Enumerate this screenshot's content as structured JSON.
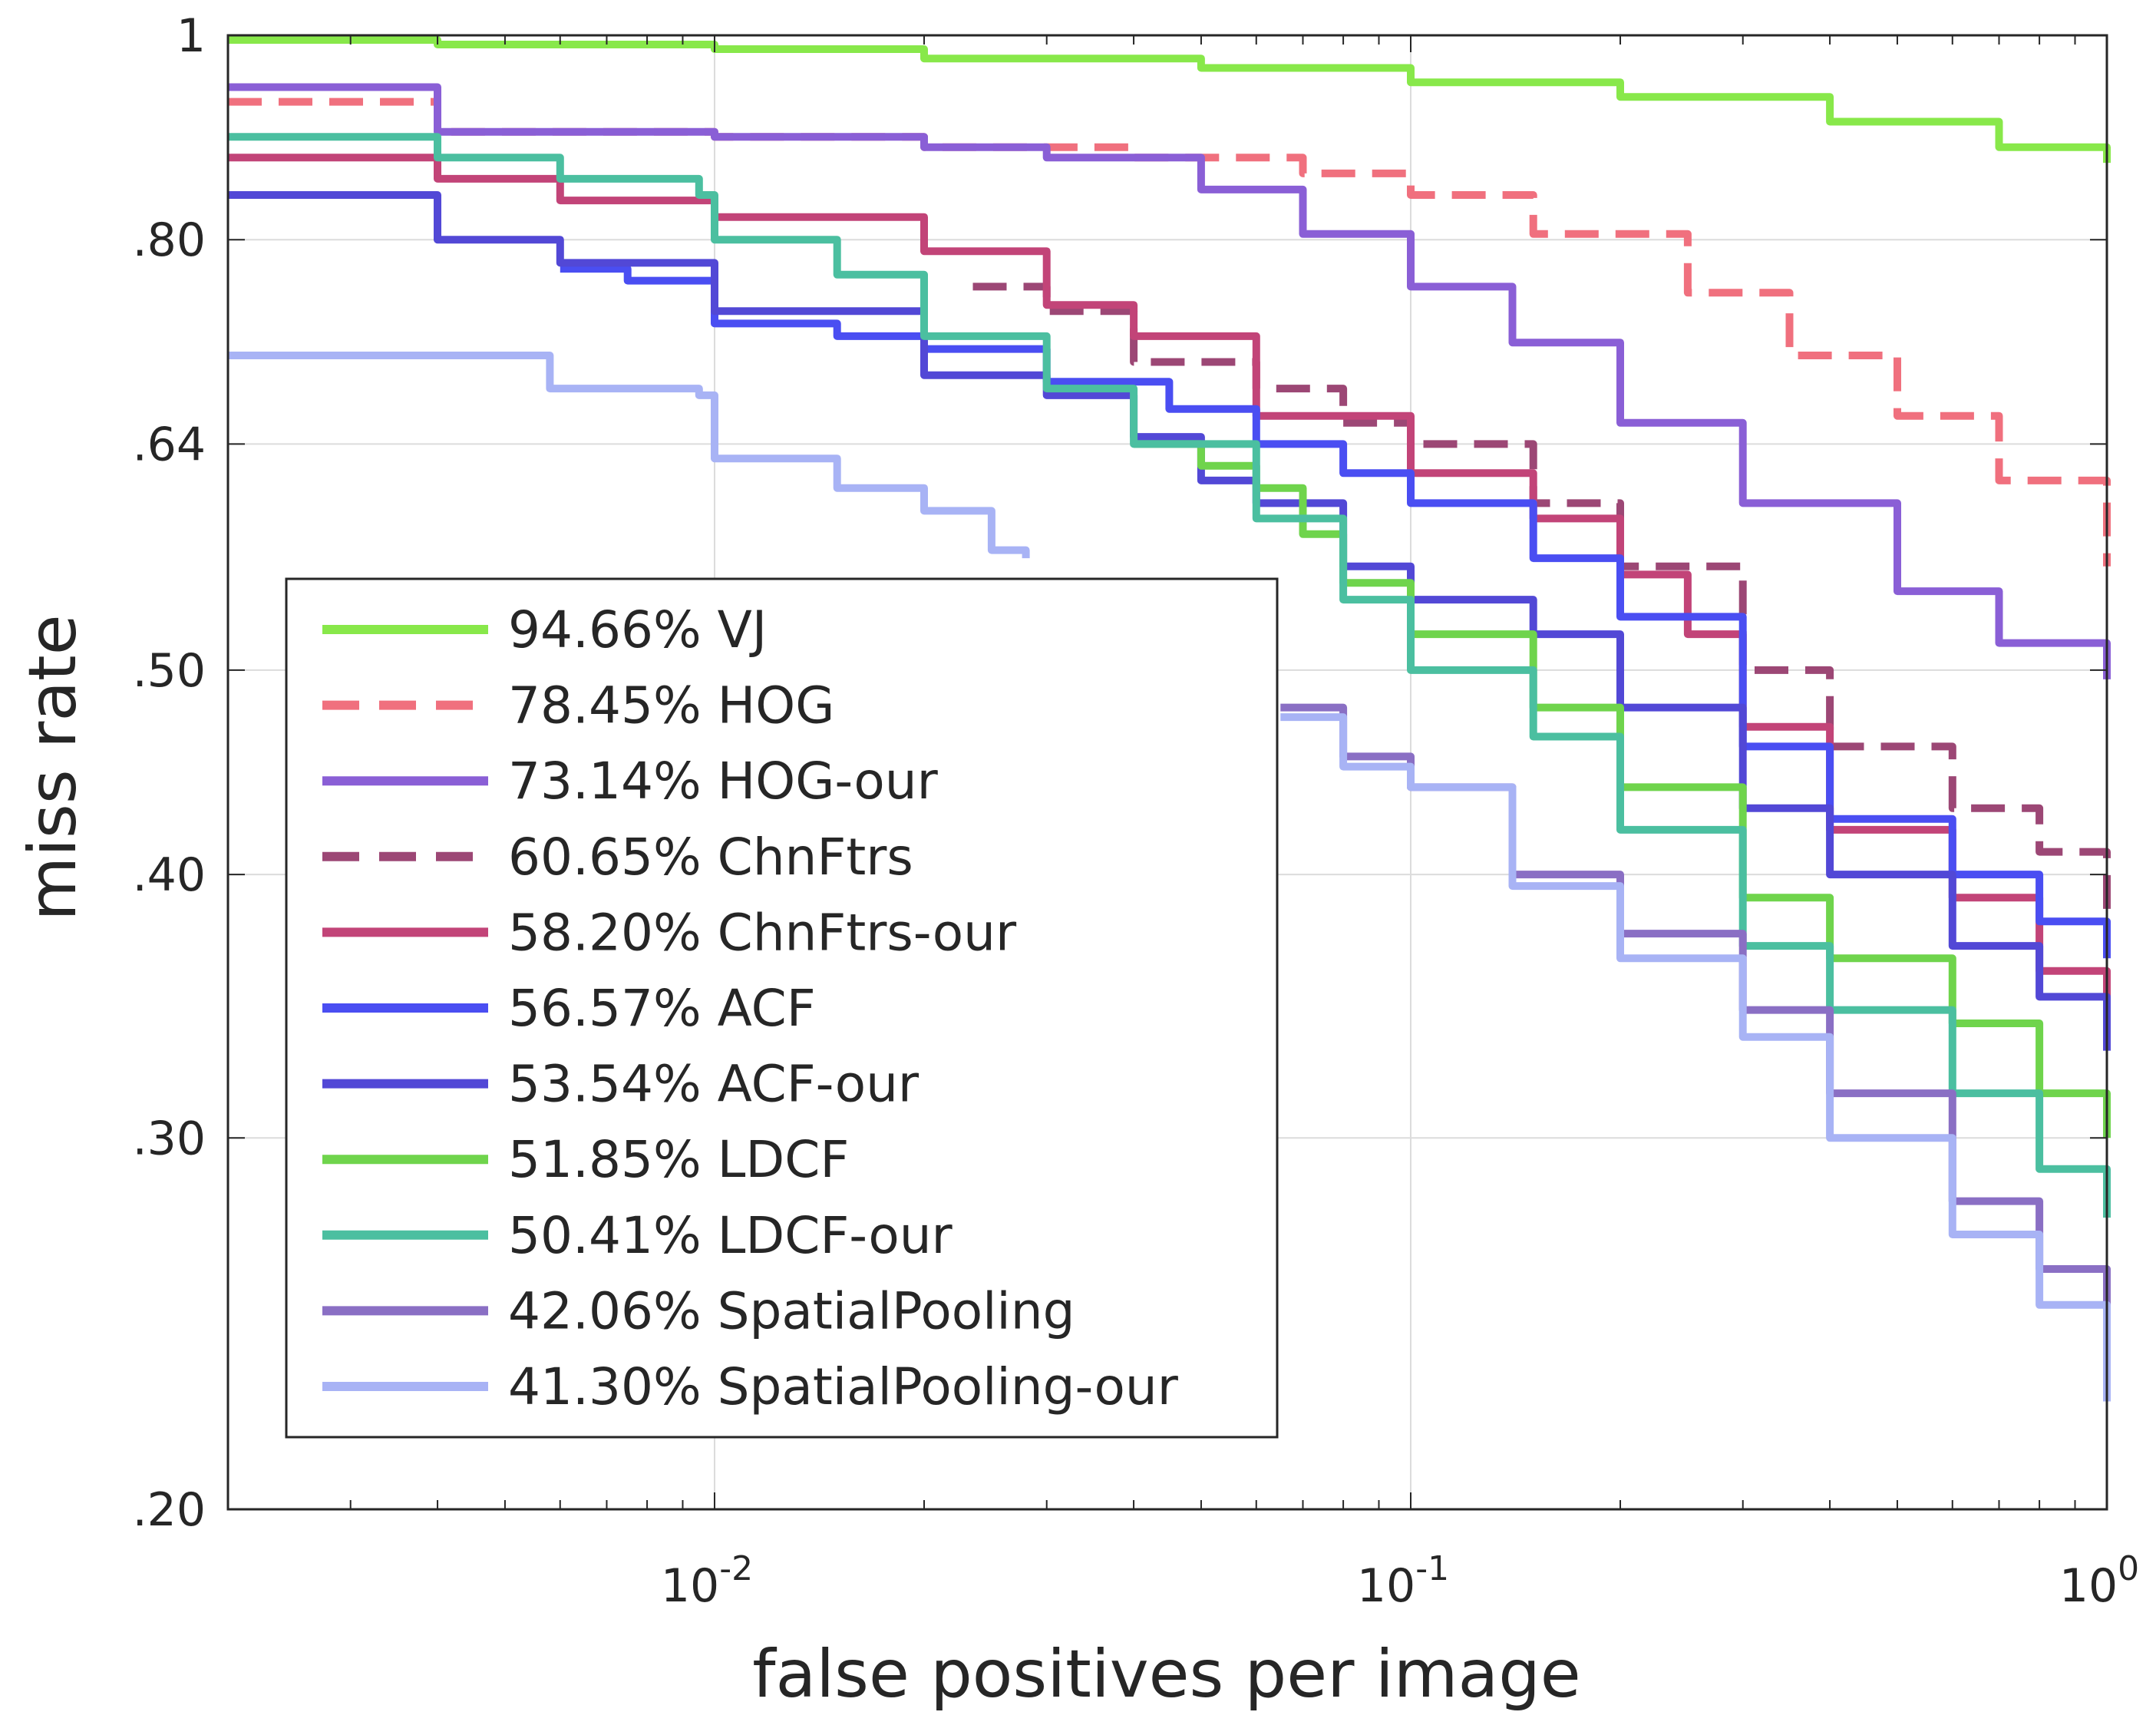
{
  "chart_data": {
    "type": "line",
    "title": "",
    "xlabel": "false positives per image",
    "ylabel": "miss rate",
    "xscale": "log",
    "yscale": "log",
    "xlim": [
      0.002,
      1
    ],
    "ylim": [
      0.2,
      1
    ],
    "xticks": [
      {
        "value": 0.01,
        "base": "10",
        "exp": "-2"
      },
      {
        "value": 0.1,
        "base": "10",
        "exp": "-1"
      },
      {
        "value": 1,
        "base": "10",
        "exp": "0"
      }
    ],
    "yticks": [
      {
        "value": 0.2,
        "label": ".20"
      },
      {
        "value": 0.3,
        "label": ".30"
      },
      {
        "value": 0.4,
        "label": ".40"
      },
      {
        "value": 0.5,
        "label": ".50"
      },
      {
        "value": 0.64,
        "label": ".64"
      },
      {
        "value": 0.8,
        "label": ".80"
      },
      {
        "value": 1,
        "label": "1"
      }
    ],
    "grid": true,
    "legend_position": "lower-left",
    "series": [
      {
        "name": "94.66% VJ",
        "color": "#88e84a",
        "dash": "solid",
        "x": [
          0.002,
          0.004,
          0.01,
          0.02,
          0.05,
          0.1,
          0.2,
          0.4,
          0.7,
          1.0
        ],
        "y": [
          0.995,
          0.99,
          0.985,
          0.975,
          0.965,
          0.95,
          0.935,
          0.91,
          0.885,
          0.87
        ]
      },
      {
        "name": "78.45% HOG",
        "color": "#f0707e",
        "dash": "dashed",
        "x": [
          0.002,
          0.004,
          0.01,
          0.02,
          0.04,
          0.07,
          0.1,
          0.15,
          0.25,
          0.35,
          0.5,
          0.7,
          1.0
        ],
        "y": [
          0.93,
          0.9,
          0.895,
          0.885,
          0.875,
          0.86,
          0.84,
          0.805,
          0.755,
          0.705,
          0.66,
          0.615,
          0.56
        ]
      },
      {
        "name": "73.14% HOG-our",
        "color": "#8a5fd6",
        "dash": "solid",
        "x": [
          0.002,
          0.004,
          0.01,
          0.02,
          0.03,
          0.05,
          0.07,
          0.1,
          0.14,
          0.2,
          0.3,
          0.5,
          0.7,
          1.0
        ],
        "y": [
          0.945,
          0.9,
          0.895,
          0.885,
          0.875,
          0.845,
          0.805,
          0.76,
          0.715,
          0.655,
          0.6,
          0.545,
          0.515,
          0.495
        ]
      },
      {
        "name": "60.65% ChnFtrs",
        "color": "#9c4775",
        "dash": "dashed",
        "x": [
          0.0235,
          0.03,
          0.04,
          0.06,
          0.08,
          0.1,
          0.15,
          0.2,
          0.3,
          0.4,
          0.6,
          0.8,
          1.0
        ],
        "y": [
          0.76,
          0.74,
          0.7,
          0.68,
          0.655,
          0.64,
          0.6,
          0.56,
          0.5,
          0.46,
          0.43,
          0.41,
          0.37
        ]
      },
      {
        "name": "58.20% ChnFtrs-our",
        "color": "#c24478",
        "dash": "solid",
        "x": [
          0.002,
          0.004,
          0.006,
          0.01,
          0.02,
          0.03,
          0.04,
          0.06,
          0.1,
          0.15,
          0.2,
          0.25,
          0.3,
          0.4,
          0.6,
          0.8,
          1.0
        ],
        "y": [
          0.875,
          0.855,
          0.835,
          0.82,
          0.79,
          0.745,
          0.72,
          0.66,
          0.62,
          0.59,
          0.555,
          0.52,
          0.47,
          0.42,
          0.39,
          0.36,
          0.34
        ]
      },
      {
        "name": "56.57% ACF",
        "color": "#4a4ef2",
        "dash": "solid",
        "x": [
          0.006,
          0.0075,
          0.01,
          0.015,
          0.02,
          0.03,
          0.045,
          0.06,
          0.08,
          0.1,
          0.15,
          0.2,
          0.3,
          0.4,
          0.6,
          0.8,
          1.0
        ],
        "y": [
          0.775,
          0.765,
          0.73,
          0.72,
          0.71,
          0.685,
          0.665,
          0.64,
          0.62,
          0.6,
          0.565,
          0.53,
          0.46,
          0.425,
          0.4,
          0.38,
          0.365
        ]
      },
      {
        "name": "53.54% ACF-our",
        "color": "#5248d6",
        "dash": "solid",
        "x": [
          0.002,
          0.004,
          0.006,
          0.01,
          0.02,
          0.03,
          0.04,
          0.05,
          0.06,
          0.08,
          0.1,
          0.15,
          0.2,
          0.3,
          0.4,
          0.6,
          0.8,
          1.0
        ],
        "y": [
          0.84,
          0.8,
          0.78,
          0.74,
          0.69,
          0.675,
          0.645,
          0.615,
          0.6,
          0.56,
          0.54,
          0.52,
          0.48,
          0.43,
          0.4,
          0.37,
          0.35,
          0.33
        ]
      },
      {
        "name": "51.85% LDCF",
        "color": "#6fd44c",
        "dash": "solid",
        "x": [
          0.04,
          0.05,
          0.06,
          0.07,
          0.08,
          0.1,
          0.15,
          0.2,
          0.3,
          0.4,
          0.6,
          0.8,
          1.0
        ],
        "y": [
          0.64,
          0.625,
          0.61,
          0.58,
          0.55,
          0.52,
          0.48,
          0.44,
          0.39,
          0.365,
          0.34,
          0.315,
          0.3
        ]
      },
      {
        "name": "50.41% LDCF-our",
        "color": "#4bbfa0",
        "dash": "solid",
        "x": [
          0.002,
          0.004,
          0.006,
          0.0095,
          0.01,
          0.015,
          0.02,
          0.03,
          0.04,
          0.06,
          0.08,
          0.1,
          0.15,
          0.2,
          0.3,
          0.4,
          0.6,
          0.8,
          1.0
        ],
        "y": [
          0.895,
          0.875,
          0.855,
          0.84,
          0.8,
          0.77,
          0.72,
          0.68,
          0.64,
          0.59,
          0.54,
          0.5,
          0.465,
          0.42,
          0.37,
          0.345,
          0.315,
          0.29,
          0.275
        ]
      },
      {
        "name": "42.06% SpatialPooling",
        "color": "#8a6fc4",
        "dash": "solid",
        "x": [
          0.065,
          0.08,
          0.1,
          0.14,
          0.2,
          0.3,
          0.4,
          0.6,
          0.8,
          1.0
        ],
        "y": [
          0.48,
          0.455,
          0.44,
          0.4,
          0.375,
          0.345,
          0.315,
          0.28,
          0.26,
          0.245
        ]
      },
      {
        "name": "41.30% SpatialPooling-our",
        "color": "#a8b3f5",
        "dash": "solid",
        "x": [
          0.002,
          0.004,
          0.0058,
          0.0095,
          0.01,
          0.015,
          0.02,
          0.025,
          0.028
        ],
        "y": [
          0.705,
          0.705,
          0.68,
          0.675,
          0.63,
          0.61,
          0.595,
          0.57,
          0.565
        ],
        "x2": [
          0.065,
          0.08,
          0.1,
          0.14,
          0.2,
          0.3,
          0.4,
          0.6,
          0.8,
          1.0
        ],
        "y2": [
          0.475,
          0.45,
          0.44,
          0.395,
          0.365,
          0.335,
          0.3,
          0.27,
          0.25,
          0.225
        ]
      }
    ]
  }
}
